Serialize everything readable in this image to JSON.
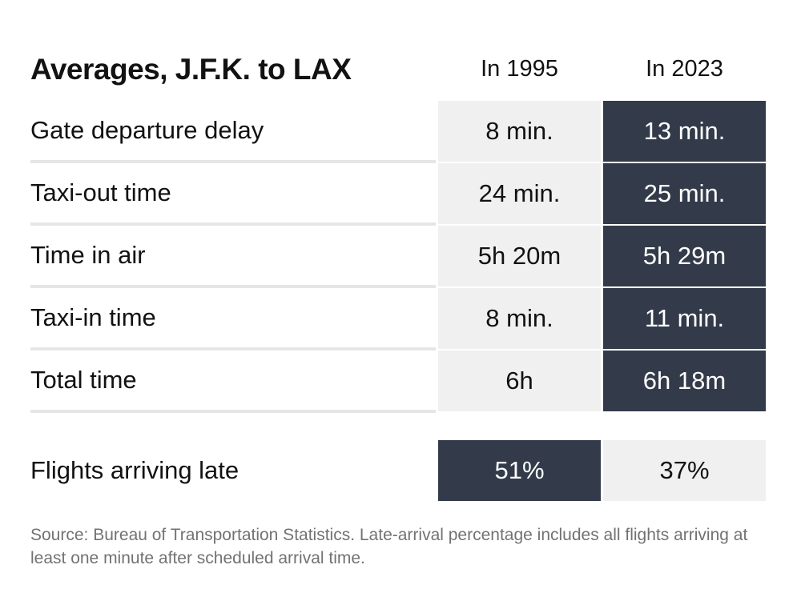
{
  "chart_data": {
    "type": "table",
    "title": "Averages, J.F.K. to LAX",
    "columns": [
      "In 1995",
      "In 2023"
    ],
    "rows": [
      {
        "label": "Gate departure delay",
        "values": [
          "8 min.",
          "13 min."
        ]
      },
      {
        "label": "Taxi-out time",
        "values": [
          "24 min.",
          "25 min."
        ]
      },
      {
        "label": "Time in air",
        "values": [
          "5h 20m",
          "5h 29m"
        ]
      },
      {
        "label": "Taxi-in time",
        "values": [
          "8 min.",
          "11 min."
        ]
      },
      {
        "label": "Total time",
        "values": [
          "6h",
          "6h 18m"
        ]
      }
    ],
    "late_row": {
      "label": "Flights arriving late",
      "values": [
        "51%",
        "37%"
      ]
    },
    "highlight": {
      "main_rows": "In 2023",
      "late_row": "In 1995"
    },
    "colors": {
      "highlight": "#333b4a",
      "neutral": "#f0f0f0"
    },
    "source": "Source: Bureau of Transportation Statistics. Late-arrival percentage includes all flights arriving at least one minute after scheduled arrival time."
  }
}
